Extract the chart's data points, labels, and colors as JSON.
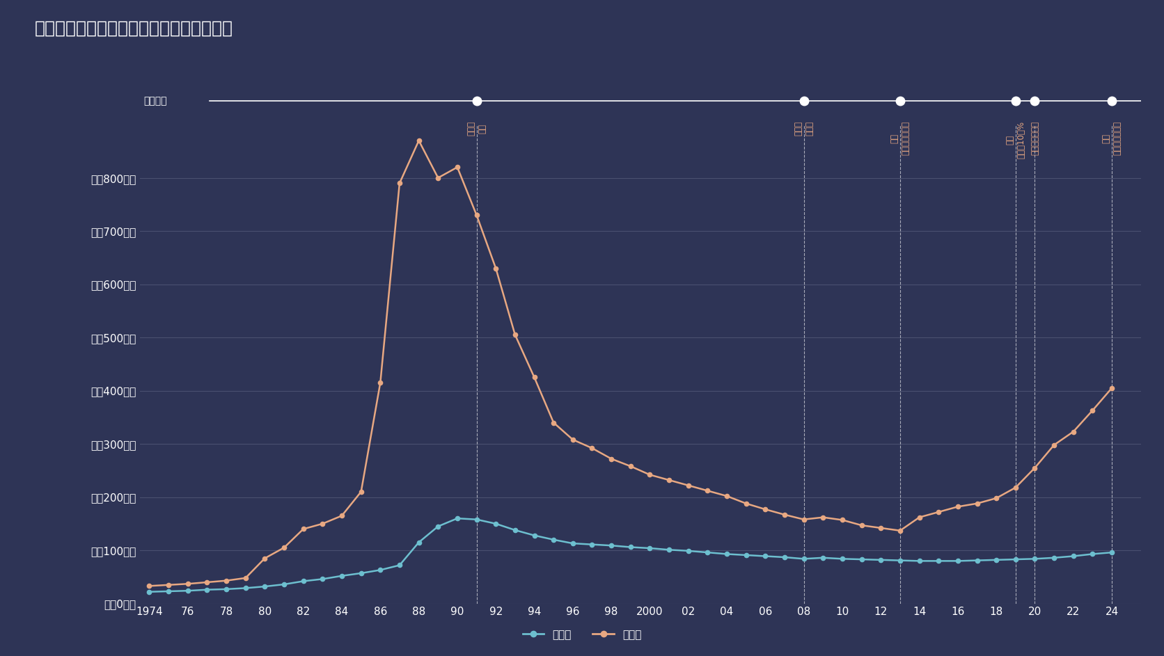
{
  "title": "横浜市神奈川区　土地価格の推移（平均）",
  "bg_color": "#2e3456",
  "grid_color": "#4a5070",
  "text_color": "#ffffff",
  "line_color_residential": "#6dbfcf",
  "line_color_commercial": "#e8a882",
  "timeline_label": "経済年表",
  "legend_residential": "住宅地",
  "legend_commercial": "商業地",
  "years_residential": [
    1974,
    1975,
    1976,
    1977,
    1978,
    1979,
    1980,
    1981,
    1982,
    1983,
    1984,
    1985,
    1986,
    1987,
    1988,
    1989,
    1990,
    1991,
    1992,
    1993,
    1994,
    1995,
    1996,
    1997,
    1998,
    1999,
    2000,
    2001,
    2002,
    2003,
    2004,
    2005,
    2006,
    2007,
    2008,
    2009,
    2010,
    2011,
    2012,
    2013,
    2014,
    2015,
    2016,
    2017,
    2018,
    2019,
    2020,
    2021,
    2022,
    2023,
    2024
  ],
  "values_residential": [
    22,
    23,
    24,
    26,
    27,
    29,
    32,
    36,
    42,
    46,
    52,
    57,
    63,
    72,
    115,
    145,
    160,
    158,
    150,
    138,
    128,
    120,
    113,
    111,
    109,
    106,
    104,
    101,
    99,
    96,
    93,
    91,
    89,
    87,
    84,
    86,
    84,
    83,
    82,
    81,
    80,
    80,
    80,
    81,
    82,
    83,
    84,
    86,
    89,
    93,
    96
  ],
  "years_commercial": [
    1974,
    1975,
    1976,
    1977,
    1978,
    1979,
    1980,
    1981,
    1982,
    1983,
    1984,
    1985,
    1986,
    1987,
    1988,
    1989,
    1990,
    1991,
    1992,
    1993,
    1994,
    1995,
    1996,
    1997,
    1998,
    1999,
    2000,
    2001,
    2002,
    2003,
    2004,
    2005,
    2006,
    2007,
    2008,
    2009,
    2010,
    2011,
    2012,
    2013,
    2014,
    2015,
    2016,
    2017,
    2018,
    2019,
    2020,
    2021,
    2022,
    2023,
    2024
  ],
  "values_commercial": [
    33,
    35,
    37,
    40,
    43,
    48,
    85,
    105,
    140,
    150,
    165,
    210,
    415,
    790,
    870,
    800,
    820,
    730,
    630,
    505,
    425,
    340,
    308,
    292,
    272,
    258,
    242,
    232,
    222,
    212,
    202,
    188,
    177,
    167,
    158,
    162,
    157,
    147,
    142,
    137,
    162,
    172,
    182,
    188,
    198,
    218,
    255,
    298,
    323,
    363,
    405
  ],
  "events": [
    {
      "year": 1991,
      "label": "バブル\n崩壊",
      "color": "#e8a882"
    },
    {
      "year": 2008,
      "label": "世界金\n融危機",
      "color": "#e8a882"
    },
    {
      "year": 2013,
      "label": "日銀\n異次元金融緩和",
      "color": "#e8a882"
    },
    {
      "year": 2019,
      "label": "増税\n消費税10．%",
      "color": "#e8a882"
    },
    {
      "year": 2020,
      "label": "コロナ感染拡大",
      "color": "#e8a882"
    },
    {
      "year": 2024,
      "label": "日銀\n異次元緩和終了",
      "color": "#e8a882"
    }
  ],
  "yticks": [
    0,
    100,
    200,
    300,
    400,
    500,
    600,
    700,
    800
  ],
  "ytick_labels": [
    "坪／0万円",
    "坪／100万円",
    "坪／200万円",
    "坪／300万円",
    "坪／400万円",
    "坪／500万円",
    "坪／600万円",
    "坪／700万円",
    "坪／800万円"
  ],
  "xticks": [
    1974,
    1976,
    1978,
    1980,
    1982,
    1984,
    1986,
    1988,
    1990,
    1992,
    1994,
    1996,
    1998,
    2000,
    2002,
    2004,
    2006,
    2008,
    2010,
    2012,
    2014,
    2016,
    2018,
    2020,
    2022,
    2024
  ],
  "xtick_labels": [
    "1974",
    "76",
    "78",
    "80",
    "82",
    "84",
    "86",
    "88",
    "90",
    "92",
    "94",
    "96",
    "98",
    "2000",
    "02",
    "04",
    "06",
    "08",
    "10",
    "12",
    "14",
    "16",
    "18",
    "20",
    "22",
    "24"
  ],
  "xlim": [
    1973.5,
    2025.5
  ],
  "ylim": [
    0,
    900
  ],
  "timeline_y_frac": 0.895,
  "event_label_color": "#e8a882",
  "dashed_line_color": "#ffffff",
  "timeline_line_color": "#ffffff"
}
